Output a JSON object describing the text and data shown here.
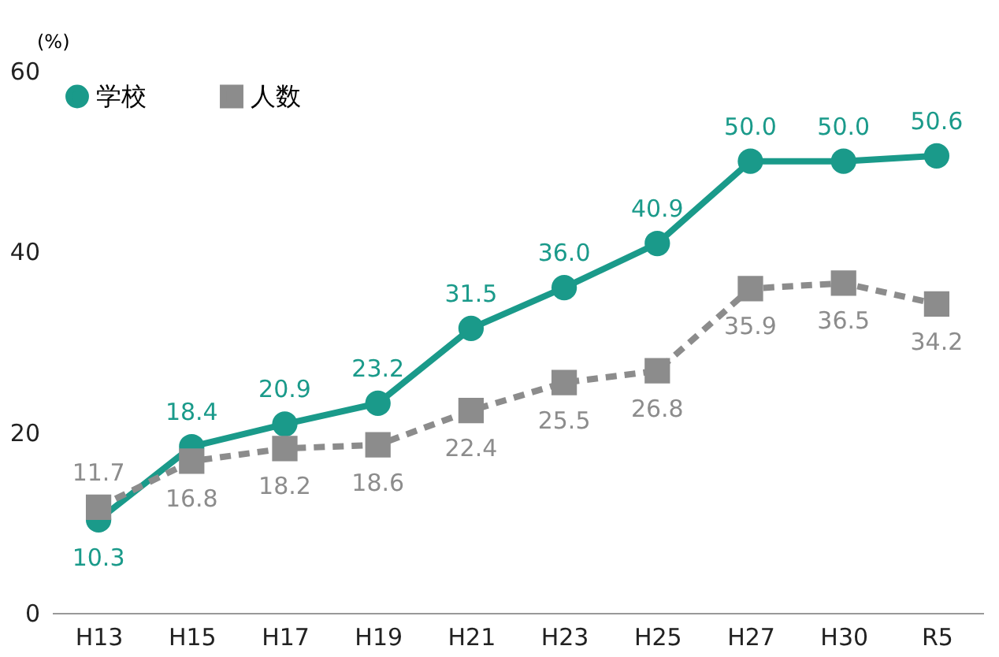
{
  "chart_data": {
    "type": "line",
    "ylabel": "(%)",
    "categories": [
      "H13",
      "H15",
      "H17",
      "H19",
      "H21",
      "H23",
      "H25",
      "H27",
      "H30",
      "R5"
    ],
    "series": [
      {
        "name": "学校",
        "color": "#1a9a8a",
        "marker": "circle",
        "line_style": "solid",
        "values": [
          10.3,
          18.4,
          20.9,
          23.2,
          31.5,
          36.0,
          40.9,
          50.0,
          50.0,
          50.6
        ],
        "value_labels": [
          "10.3",
          "18.4",
          "20.9",
          "23.2",
          "31.5",
          "36.0",
          "40.9",
          "50.0",
          "50.0",
          "50.6"
        ]
      },
      {
        "name": "人数",
        "color": "#8c8c8c",
        "marker": "square",
        "line_style": "dashed",
        "values": [
          11.7,
          16.8,
          18.2,
          18.6,
          22.4,
          25.5,
          26.8,
          35.9,
          36.5,
          34.2
        ],
        "value_labels": [
          "11.7",
          "16.8",
          "18.2",
          "18.6",
          "22.4",
          "25.5",
          "26.8",
          "35.9",
          "36.5",
          "34.2"
        ]
      }
    ],
    "ylim": [
      0,
      60
    ],
    "yticks": [
      0,
      20,
      40,
      60
    ],
    "grid": false,
    "legend": "top left"
  }
}
